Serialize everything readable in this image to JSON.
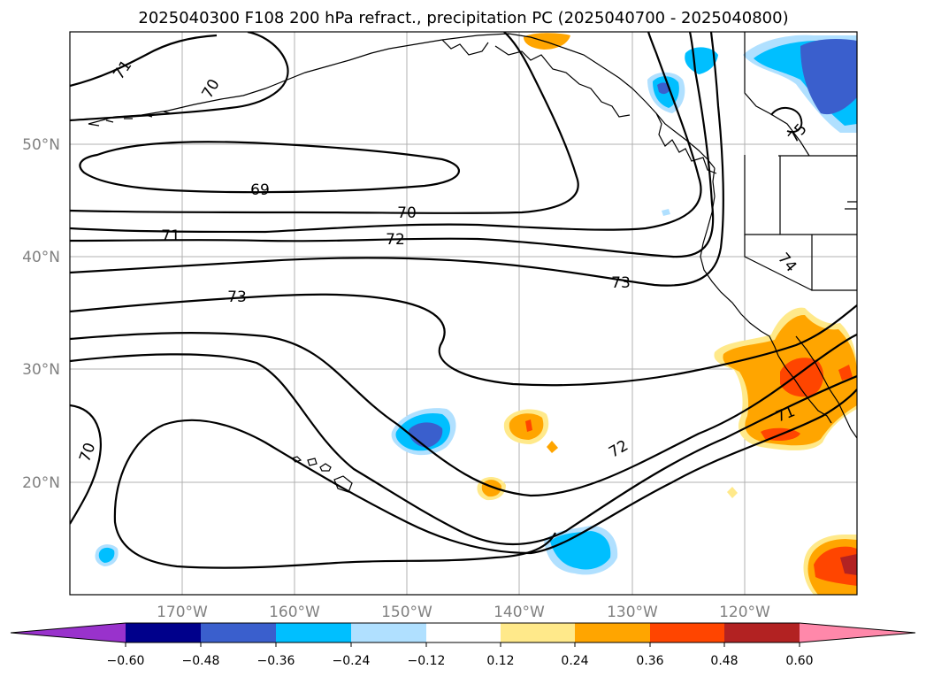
{
  "title": "2025040300 F108 200 hPa refract., precipitation PC (2025040700 - 2025040800)",
  "map": {
    "lon_labels": [
      "170°W",
      "160°W",
      "150°W",
      "140°W",
      "130°W",
      "120°W"
    ],
    "lat_labels": [
      "50°N",
      "40°N",
      "30°N",
      "20°N"
    ],
    "grid": true,
    "coastline_color": "#000000"
  },
  "contour_labels": [
    "71",
    "70",
    "69",
    "70",
    "71",
    "72",
    "73",
    "73",
    "74",
    "75",
    "71",
    "72",
    "70"
  ],
  "colorbar": {
    "tick_labels": [
      "−0.60",
      "−0.48",
      "−0.36",
      "−0.24",
      "−0.12",
      "0.12",
      "0.24",
      "0.36",
      "0.48",
      "0.60"
    ],
    "colors": [
      "#9932cc",
      "#00008b",
      "#3a5fcd",
      "#00bfff",
      "#b0e0ff",
      "#ffffff",
      "#ffe98a",
      "#ffa500",
      "#ff4500",
      "#b22222",
      "#ff88aa"
    ],
    "extend": "both"
  }
}
